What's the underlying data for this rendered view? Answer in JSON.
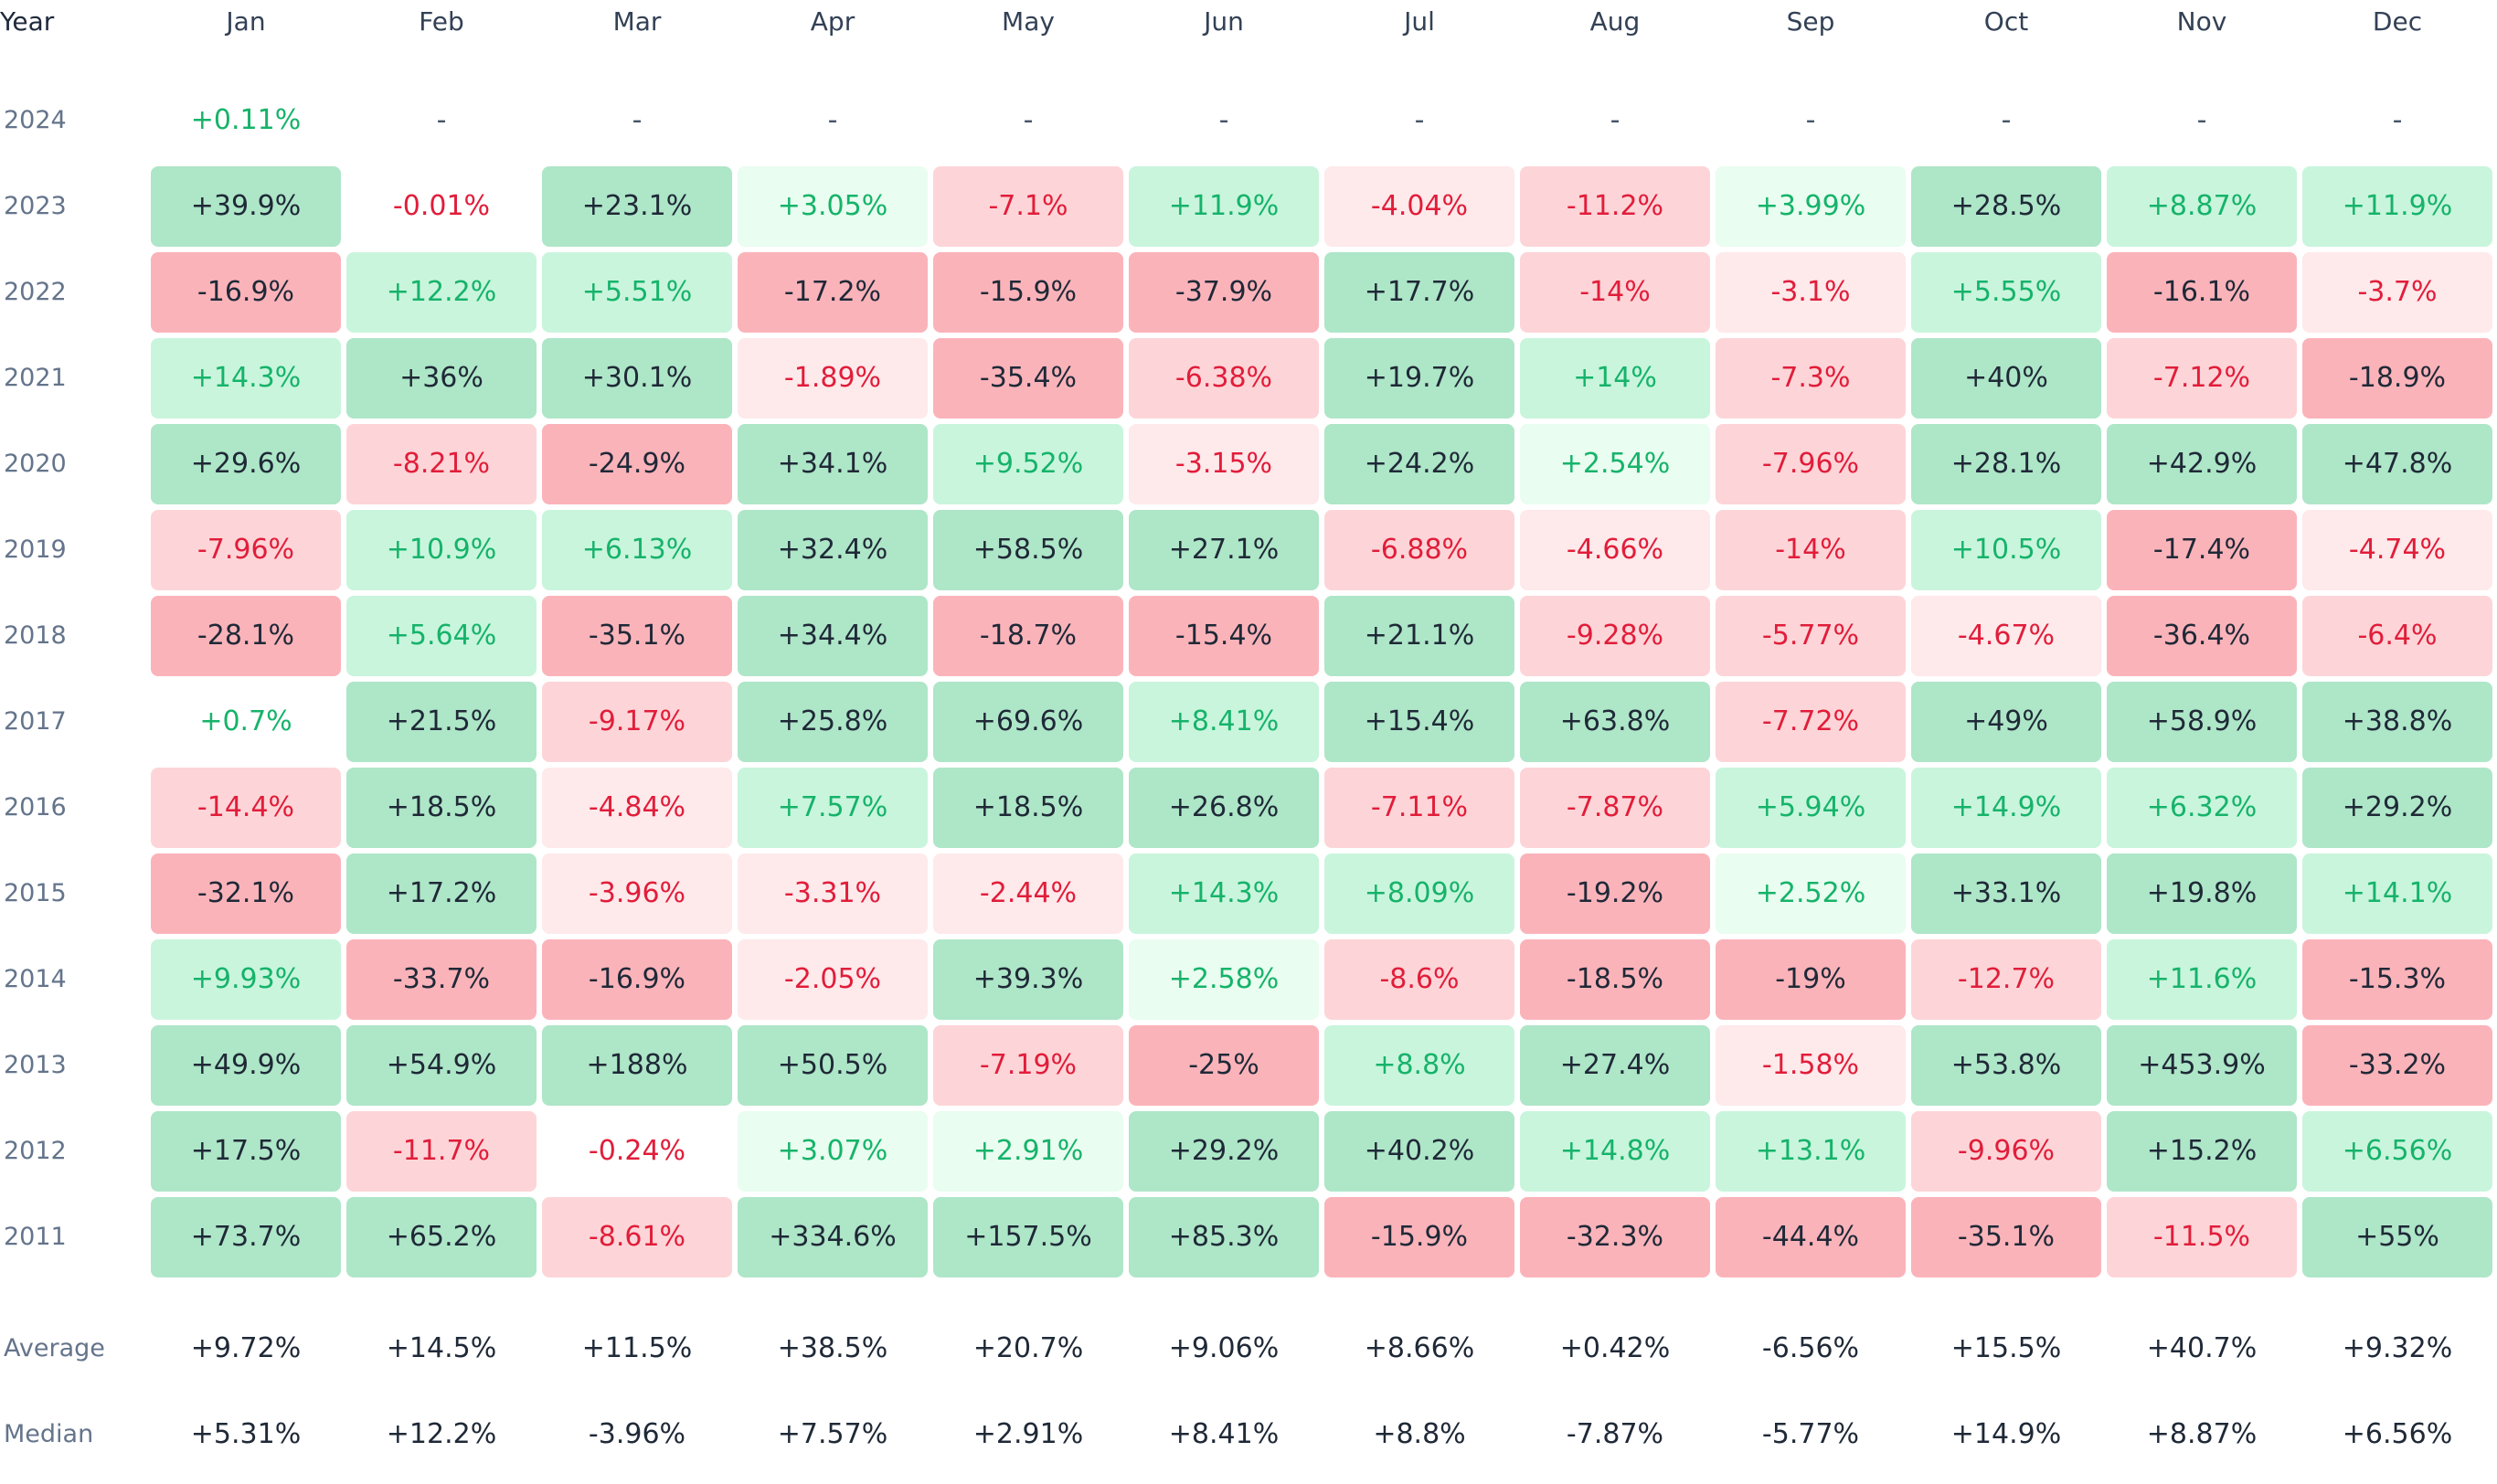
{
  "chart_data": {
    "type": "heatmap",
    "title": "",
    "corner_label": "Year",
    "months": [
      "Jan",
      "Feb",
      "Mar",
      "Apr",
      "May",
      "Jun",
      "Jul",
      "Aug",
      "Sep",
      "Oct",
      "Nov",
      "Dec"
    ],
    "rows": [
      {
        "year": "2024",
        "values": [
          "+0.11%",
          "-",
          "-",
          "-",
          "-",
          "-",
          "-",
          "-",
          "-",
          "-",
          "-",
          "-"
        ]
      },
      {
        "year": "2023",
        "values": [
          "+39.9%",
          "-0.01%",
          "+23.1%",
          "+3.05%",
          "-7.1%",
          "+11.9%",
          "-4.04%",
          "-11.2%",
          "+3.99%",
          "+28.5%",
          "+8.87%",
          "+11.9%"
        ]
      },
      {
        "year": "2022",
        "values": [
          "-16.9%",
          "+12.2%",
          "+5.51%",
          "-17.2%",
          "-15.9%",
          "-37.9%",
          "+17.7%",
          "-14%",
          "-3.1%",
          "+5.55%",
          "-16.1%",
          "-3.7%"
        ]
      },
      {
        "year": "2021",
        "values": [
          "+14.3%",
          "+36%",
          "+30.1%",
          "-1.89%",
          "-35.4%",
          "-6.38%",
          "+19.7%",
          "+14%",
          "-7.3%",
          "+40%",
          "-7.12%",
          "-18.9%"
        ]
      },
      {
        "year": "2020",
        "values": [
          "+29.6%",
          "-8.21%",
          "-24.9%",
          "+34.1%",
          "+9.52%",
          "-3.15%",
          "+24.2%",
          "+2.54%",
          "-7.96%",
          "+28.1%",
          "+42.9%",
          "+47.8%"
        ]
      },
      {
        "year": "2019",
        "values": [
          "-7.96%",
          "+10.9%",
          "+6.13%",
          "+32.4%",
          "+58.5%",
          "+27.1%",
          "-6.88%",
          "-4.66%",
          "-14%",
          "+10.5%",
          "-17.4%",
          "-4.74%"
        ]
      },
      {
        "year": "2018",
        "values": [
          "-28.1%",
          "+5.64%",
          "-35.1%",
          "+34.4%",
          "-18.7%",
          "-15.4%",
          "+21.1%",
          "-9.28%",
          "-5.77%",
          "-4.67%",
          "-36.4%",
          "-6.4%"
        ]
      },
      {
        "year": "2017",
        "values": [
          "+0.7%",
          "+21.5%",
          "-9.17%",
          "+25.8%",
          "+69.6%",
          "+8.41%",
          "+15.4%",
          "+63.8%",
          "-7.72%",
          "+49%",
          "+58.9%",
          "+38.8%"
        ]
      },
      {
        "year": "2016",
        "values": [
          "-14.4%",
          "+18.5%",
          "-4.84%",
          "+7.57%",
          "+18.5%",
          "+26.8%",
          "-7.11%",
          "-7.87%",
          "+5.94%",
          "+14.9%",
          "+6.32%",
          "+29.2%"
        ]
      },
      {
        "year": "2015",
        "values": [
          "-32.1%",
          "+17.2%",
          "-3.96%",
          "-3.31%",
          "-2.44%",
          "+14.3%",
          "+8.09%",
          "-19.2%",
          "+2.52%",
          "+33.1%",
          "+19.8%",
          "+14.1%"
        ]
      },
      {
        "year": "2014",
        "values": [
          "+9.93%",
          "-33.7%",
          "-16.9%",
          "-2.05%",
          "+39.3%",
          "+2.58%",
          "-8.6%",
          "-18.5%",
          "-19%",
          "-12.7%",
          "+11.6%",
          "-15.3%"
        ]
      },
      {
        "year": "2013",
        "values": [
          "+49.9%",
          "+54.9%",
          "+188%",
          "+50.5%",
          "-7.19%",
          "-25%",
          "+8.8%",
          "+27.4%",
          "-1.58%",
          "+53.8%",
          "+453.9%",
          "-33.2%"
        ]
      },
      {
        "year": "2012",
        "values": [
          "+17.5%",
          "-11.7%",
          "-0.24%",
          "+3.07%",
          "+2.91%",
          "+29.2%",
          "+40.2%",
          "+14.8%",
          "+13.1%",
          "-9.96%",
          "+15.2%",
          "+6.56%"
        ]
      },
      {
        "year": "2011",
        "values": [
          "+73.7%",
          "+65.2%",
          "-8.61%",
          "+334.6%",
          "+157.5%",
          "+85.3%",
          "-15.9%",
          "-32.3%",
          "-44.4%",
          "-35.1%",
          "-11.5%",
          "+55%"
        ]
      }
    ],
    "summary_rows": [
      {
        "label": "Average",
        "values": [
          "+9.72%",
          "+14.5%",
          "+11.5%",
          "+38.5%",
          "+20.7%",
          "+9.06%",
          "+8.66%",
          "+0.42%",
          "-6.56%",
          "+15.5%",
          "+40.7%",
          "+9.32%"
        ]
      },
      {
        "label": "Median",
        "values": [
          "+5.31%",
          "+12.2%",
          "-3.96%",
          "+7.57%",
          "+2.91%",
          "+8.41%",
          "+8.8%",
          "-7.87%",
          "-5.77%",
          "+14.9%",
          "+8.87%",
          "+6.56%"
        ]
      }
    ],
    "colors": {
      "positive_text": "#16b36a",
      "negative_text": "#e11d3a",
      "strong_text": "#1f2937"
    }
  }
}
